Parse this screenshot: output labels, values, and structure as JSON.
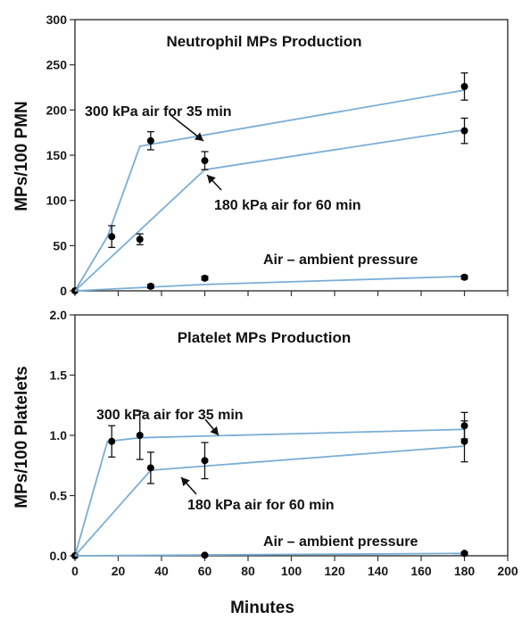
{
  "chart_data": [
    {
      "type": "line",
      "title": "Neutrophil MPs Production",
      "xlabel": "",
      "ylabel": "MPs/100 PMN",
      "xlim": [
        0,
        200
      ],
      "ylim": [
        0,
        300
      ],
      "xticks": [],
      "yticks": [
        "0",
        "50",
        "100",
        "150",
        "200",
        "250",
        "300"
      ],
      "grid": false,
      "line_color": "#7aaed6",
      "marker_color": "#000000",
      "series": [
        {
          "points": [
            {
              "x": 0,
              "y": 0,
              "err": 0
            },
            {
              "x": 17,
              "y": 60,
              "err": 12
            },
            {
              "x": 35,
              "y": 166,
              "err": 10
            },
            {
              "x": 180,
              "y": 226,
              "err": 15
            }
          ],
          "fit": [
            [
              0,
              0
            ],
            [
              15,
              60
            ],
            [
              30,
              160
            ],
            [
              180,
              222
            ]
          ]
        },
        {
          "points": [
            {
              "x": 30,
              "y": 57,
              "err": 6
            },
            {
              "x": 60,
              "y": 144,
              "err": 10
            },
            {
              "x": 180,
              "y": 177,
              "err": 14
            }
          ],
          "fit": [
            [
              0,
              0
            ],
            [
              60,
              134
            ],
            [
              180,
              178
            ]
          ]
        },
        {
          "points": [
            {
              "x": 35,
              "y": 5,
              "err": 2
            },
            {
              "x": 60,
              "y": 14,
              "err": 2
            },
            {
              "x": 180,
              "y": 15,
              "err": 2
            }
          ],
          "fit": [
            [
              0,
              0
            ],
            [
              60,
              7
            ],
            [
              180,
              16
            ]
          ]
        }
      ],
      "annotations": [
        {
          "text": "300 kPa air for 35 min",
          "arrow": true
        },
        {
          "text": "180 kPa air for 60 min",
          "arrow": true
        },
        {
          "text": "Air – ambient pressure",
          "arrow": false
        }
      ]
    },
    {
      "type": "line",
      "title": "Platelet MPs Production",
      "xlabel": "Minutes",
      "ylabel": "MPs/100 Platelets",
      "xlim": [
        0,
        200
      ],
      "ylim": [
        0,
        2.0
      ],
      "xticks": [
        "0",
        "20",
        "40",
        "60",
        "80",
        "100",
        "120",
        "140",
        "160",
        "180",
        "200"
      ],
      "yticks": [
        "0.0",
        "0.5",
        "1.0",
        "1.5",
        "2.0"
      ],
      "grid": false,
      "line_color": "#7aaed6",
      "marker_color": "#000000",
      "series": [
        {
          "points": [
            {
              "x": 0,
              "y": 0,
              "err": 0
            },
            {
              "x": 17,
              "y": 0.95,
              "err": 0.13
            },
            {
              "x": 30,
              "y": 1.0,
              "err": 0.2
            },
            {
              "x": 180,
              "y": 1.08,
              "err": 0.11
            }
          ],
          "fit": [
            [
              0,
              0
            ],
            [
              15,
              0.95
            ],
            [
              30,
              0.98
            ],
            [
              180,
              1.05
            ]
          ]
        },
        {
          "points": [
            {
              "x": 35,
              "y": 0.73,
              "err": 0.13
            },
            {
              "x": 60,
              "y": 0.79,
              "err": 0.15
            },
            {
              "x": 180,
              "y": 0.95,
              "err": 0.17
            }
          ],
          "fit": [
            [
              0,
              0
            ],
            [
              35,
              0.71
            ],
            [
              180,
              0.91
            ]
          ]
        },
        {
          "points": [
            {
              "x": 60,
              "y": 0.005,
              "err": 0.005
            },
            {
              "x": 180,
              "y": 0.02,
              "err": 0.01
            }
          ],
          "fit": [
            [
              0,
              0
            ],
            [
              180,
              0.02
            ]
          ]
        }
      ],
      "annotations": [
        {
          "text": "300 kPa air for 35 min",
          "arrow": true
        },
        {
          "text": "180 kPa air for 60 min",
          "arrow": true
        },
        {
          "text": "Air – ambient pressure",
          "arrow": false
        }
      ]
    }
  ]
}
